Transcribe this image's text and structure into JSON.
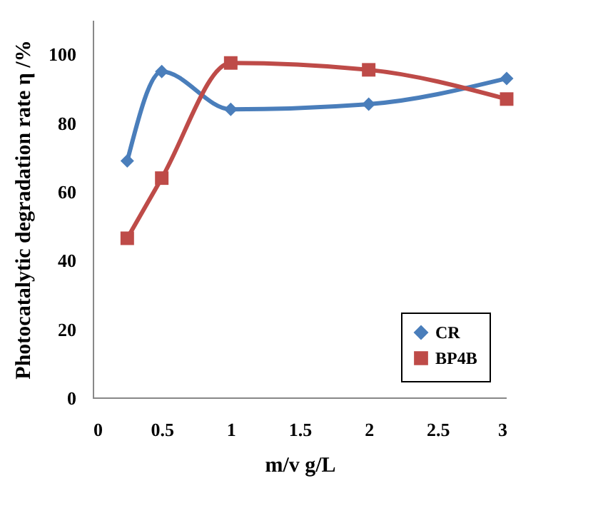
{
  "chart_data": {
    "type": "line",
    "xlabel": "m/v    g/L",
    "ylabel": "Photocatalytic degradation rate η /%",
    "xlim": [
      0,
      3
    ],
    "xticks": [
      0,
      0.5,
      1,
      1.5,
      2,
      2.5,
      3
    ],
    "ylim": [
      0,
      110
    ],
    "yticks": [
      0,
      20,
      40,
      60,
      80,
      100
    ],
    "grid": false,
    "legend": "bottom right",
    "line_style": "solid",
    "series": [
      {
        "name": "CR",
        "color": "#4a7ebb",
        "marker": "diamond",
        "x": [
          0.25,
          0.5,
          1,
          2,
          3
        ],
        "values": [
          69,
          95,
          84,
          85.5,
          93
        ]
      },
      {
        "name": "BP4B",
        "color": "#be4b48",
        "marker": "square",
        "x": [
          0.25,
          0.5,
          1,
          2,
          3
        ],
        "values": [
          46.5,
          64,
          97.5,
          95.5,
          87
        ]
      }
    ]
  }
}
